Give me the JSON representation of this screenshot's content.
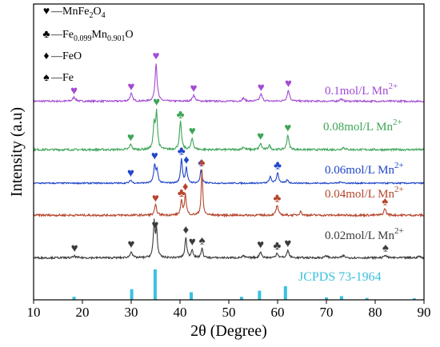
{
  "chart_data": {
    "type": "line",
    "xlabel": "2θ (Degree)",
    "ylabel": "Intensity (a.u)",
    "xlim": [
      10,
      90
    ],
    "x_ticks": [
      10,
      20,
      30,
      40,
      50,
      60,
      70,
      80,
      90
    ],
    "legend": {
      "placement": "top-left",
      "entries": [
        {
          "symbol": "♥",
          "label": "—MnFe",
          "sub1": "2",
          "mid": "O",
          "sub2": "4"
        },
        {
          "symbol": "♣",
          "label": "—Fe",
          "sub1": "0.099",
          "mid": "Mn",
          "sub2": "0.901",
          "tail": "O"
        },
        {
          "symbol": "♦",
          "label": "—FeO"
        },
        {
          "symbol": "♠",
          "label": "—Fe"
        }
      ]
    },
    "reference": {
      "name": "JCPDS 73-1964",
      "color": "#3ac1de",
      "peaks": [
        {
          "x": 18.3,
          "h": 0.1
        },
        {
          "x": 30.1,
          "h": 0.35
        },
        {
          "x": 34.9,
          "h": 1.0
        },
        {
          "x": 42.3,
          "h": 0.25
        },
        {
          "x": 52.6,
          "h": 0.1
        },
        {
          "x": 56.3,
          "h": 0.3
        },
        {
          "x": 61.6,
          "h": 0.45
        },
        {
          "x": 70.0,
          "h": 0.08
        },
        {
          "x": 73.1,
          "h": 0.12
        },
        {
          "x": 78.3,
          "h": 0.06
        },
        {
          "x": 88.0,
          "h": 0.05
        }
      ]
    },
    "series": [
      {
        "name": "0.1mol/L Mn",
        "sup": "2+",
        "color": "#a24ad2",
        "base": 0.05,
        "noise": 0.045,
        "peaks": [
          {
            "x": 18.3,
            "h": 0.1,
            "w": 0.35
          },
          {
            "x": 30.0,
            "h": 0.2,
            "w": 0.3
          },
          {
            "x": 35.1,
            "h": 1.0,
            "w": 0.25
          },
          {
            "x": 42.8,
            "h": 0.16,
            "w": 0.3
          },
          {
            "x": 53.0,
            "h": 0.08,
            "w": 0.3
          },
          {
            "x": 56.6,
            "h": 0.18,
            "w": 0.3
          },
          {
            "x": 62.2,
            "h": 0.28,
            "w": 0.3
          },
          {
            "x": 73.0,
            "h": 0.06,
            "w": 0.3
          }
        ],
        "markers": [
          {
            "x": 18.3,
            "s": "♥"
          },
          {
            "x": 30.0,
            "s": "♥"
          },
          {
            "x": 35.1,
            "s": "♥"
          },
          {
            "x": 42.8,
            "s": "♥"
          },
          {
            "x": 56.6,
            "s": "♥"
          },
          {
            "x": 62.2,
            "s": "♥"
          }
        ]
      },
      {
        "name": "0.08mol/L Mn",
        "sup": "2+",
        "color": "#3da557",
        "base": 0.05,
        "noise": 0.045,
        "peaks": [
          {
            "x": 29.9,
            "h": 0.12,
            "w": 0.25
          },
          {
            "x": 34.7,
            "h": 0.55,
            "w": 0.22
          },
          {
            "x": 35.2,
            "h": 0.82,
            "w": 0.22
          },
          {
            "x": 40.1,
            "h": 0.62,
            "w": 0.25
          },
          {
            "x": 42.5,
            "h": 0.25,
            "w": 0.25
          },
          {
            "x": 53.0,
            "h": 0.06,
            "w": 0.3
          },
          {
            "x": 56.5,
            "h": 0.14,
            "w": 0.25
          },
          {
            "x": 58.3,
            "h": 0.1,
            "w": 0.25
          },
          {
            "x": 62.1,
            "h": 0.33,
            "w": 0.25
          },
          {
            "x": 73.5,
            "h": 0.05,
            "w": 0.3
          }
        ],
        "markers": [
          {
            "x": 29.9,
            "s": "♥"
          },
          {
            "x": 35.2,
            "s": "♥"
          },
          {
            "x": 40.1,
            "s": "♣"
          },
          {
            "x": 42.5,
            "s": "♥"
          },
          {
            "x": 56.5,
            "s": "♥"
          },
          {
            "x": 62.1,
            "s": "♥"
          }
        ]
      },
      {
        "name": "0.06mol/L Mn",
        "sup": "2+",
        "color": "#1f45c9",
        "base": 0.05,
        "noise": 0.045,
        "peaks": [
          {
            "x": 29.9,
            "h": 0.1,
            "w": 0.25
          },
          {
            "x": 34.8,
            "h": 0.6,
            "w": 0.22
          },
          {
            "x": 35.3,
            "h": 0.4,
            "w": 0.22
          },
          {
            "x": 40.3,
            "h": 0.8,
            "w": 0.22
          },
          {
            "x": 41.3,
            "h": 0.5,
            "w": 0.22
          },
          {
            "x": 44.3,
            "h": 0.45,
            "w": 0.2
          },
          {
            "x": 58.5,
            "h": 0.2,
            "w": 0.25
          },
          {
            "x": 60.0,
            "h": 0.35,
            "w": 0.25
          },
          {
            "x": 62.0,
            "h": 0.1,
            "w": 0.25
          },
          {
            "x": 73.0,
            "h": 0.05,
            "w": 0.3
          }
        ],
        "markers": [
          {
            "x": 29.9,
            "s": "♥"
          },
          {
            "x": 34.8,
            "s": "♥"
          },
          {
            "x": 40.3,
            "s": "♣"
          },
          {
            "x": 41.3,
            "s": "♦"
          },
          {
            "x": 44.3,
            "s": "♠"
          },
          {
            "x": 60.0,
            "s": "♣"
          }
        ]
      },
      {
        "name": "0.04mol/L Mn",
        "sup": "2+",
        "color": "#b5452c",
        "base": 0.05,
        "noise": 0.045,
        "peaks": [
          {
            "x": 35.0,
            "h": 0.22,
            "w": 0.25
          },
          {
            "x": 40.3,
            "h": 0.3,
            "w": 0.22
          },
          {
            "x": 41.1,
            "h": 0.45,
            "w": 0.22
          },
          {
            "x": 44.5,
            "h": 1.0,
            "w": 0.18
          },
          {
            "x": 59.9,
            "h": 0.22,
            "w": 0.25
          },
          {
            "x": 64.7,
            "h": 0.1,
            "w": 0.2
          },
          {
            "x": 82.0,
            "h": 0.15,
            "w": 0.25
          }
        ],
        "markers": [
          {
            "x": 35.0,
            "s": "♥"
          },
          {
            "x": 40.3,
            "s": "♣"
          },
          {
            "x": 41.1,
            "s": "♦"
          },
          {
            "x": 44.5,
            "s": "♠"
          },
          {
            "x": 59.9,
            "s": "♣"
          },
          {
            "x": 82.0,
            "s": "♠"
          }
        ]
      },
      {
        "name": "0.02mol/L Mn",
        "sup": "2+",
        "color": "#3b3b3b",
        "base": 0.05,
        "noise": 0.045,
        "peaks": [
          {
            "x": 18.4,
            "h": 0.04,
            "w": 0.3
          },
          {
            "x": 30.0,
            "h": 0.16,
            "w": 0.25
          },
          {
            "x": 34.7,
            "h": 0.85,
            "w": 0.2
          },
          {
            "x": 35.2,
            "h": 0.65,
            "w": 0.2
          },
          {
            "x": 41.2,
            "h": 0.5,
            "w": 0.22
          },
          {
            "x": 42.5,
            "h": 0.2,
            "w": 0.22
          },
          {
            "x": 44.5,
            "h": 0.24,
            "w": 0.2
          },
          {
            "x": 53.0,
            "h": 0.04,
            "w": 0.3
          },
          {
            "x": 56.5,
            "h": 0.15,
            "w": 0.25
          },
          {
            "x": 59.9,
            "h": 0.12,
            "w": 0.25
          },
          {
            "x": 62.1,
            "h": 0.18,
            "w": 0.25
          },
          {
            "x": 70.0,
            "h": 0.05,
            "w": 0.3
          },
          {
            "x": 73.5,
            "h": 0.05,
            "w": 0.3
          },
          {
            "x": 82.1,
            "h": 0.07,
            "w": 0.25
          },
          {
            "x": 89.0,
            "h": 0.04,
            "w": 0.25
          }
        ],
        "markers": [
          {
            "x": 18.4,
            "s": "♥"
          },
          {
            "x": 30.0,
            "s": "♥"
          },
          {
            "x": 34.9,
            "s": "♥"
          },
          {
            "x": 41.2,
            "s": "♦"
          },
          {
            "x": 42.5,
            "s": "♥"
          },
          {
            "x": 44.5,
            "s": "♠"
          },
          {
            "x": 56.5,
            "s": "♥"
          },
          {
            "x": 59.9,
            "s": "♣"
          },
          {
            "x": 62.1,
            "s": "♥"
          },
          {
            "x": 82.1,
            "s": "♠"
          }
        ]
      }
    ]
  }
}
